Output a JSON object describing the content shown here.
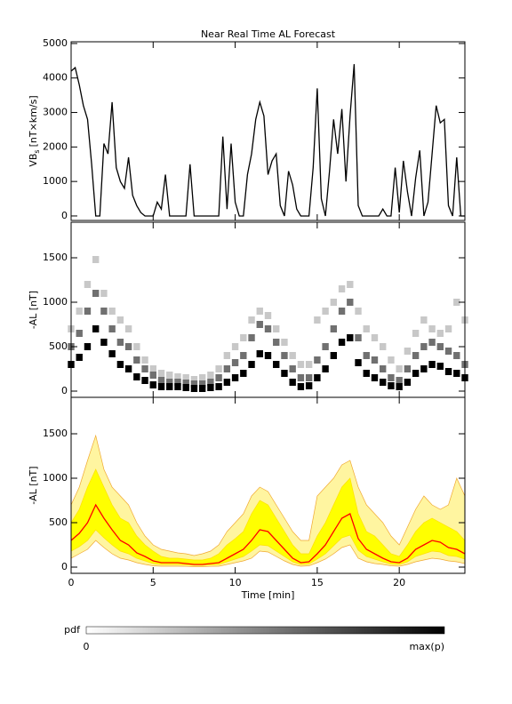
{
  "chart_data": [
    {
      "type": "line",
      "title": "Near Real Time AL Forecast",
      "ylabel": {
        "main": "VB",
        "sub": "s",
        "unit": "[nT×km/s]"
      },
      "x": [
        0,
        0.25,
        0.5,
        0.75,
        1,
        1.25,
        1.5,
        1.75,
        2,
        2.25,
        2.5,
        2.75,
        3,
        3.25,
        3.5,
        3.75,
        4,
        4.25,
        4.5,
        4.75,
        5,
        5.25,
        5.5,
        5.75,
        6,
        6.25,
        6.5,
        6.75,
        7,
        7.25,
        7.5,
        7.75,
        8,
        8.25,
        8.5,
        8.75,
        9,
        9.25,
        9.5,
        9.75,
        10,
        10.25,
        10.5,
        10.75,
        11,
        11.25,
        11.5,
        11.75,
        12,
        12.25,
        12.5,
        12.75,
        13,
        13.25,
        13.5,
        13.75,
        14,
        14.25,
        14.5,
        14.75,
        15,
        15.25,
        15.5,
        15.75,
        16,
        16.25,
        16.5,
        16.75,
        17,
        17.25,
        17.5,
        17.75,
        18,
        18.25,
        18.5,
        18.75,
        19,
        19.25,
        19.5,
        19.75,
        20,
        20.25,
        20.5,
        20.75,
        21,
        21.25,
        21.5,
        21.75,
        22,
        22.25,
        22.5,
        22.75,
        23,
        23.25,
        23.5,
        23.75,
        24
      ],
      "series": [
        {
          "color": "#000000",
          "values": [
            4200,
            4300,
            3800,
            3200,
            2800,
            1500,
            0,
            0,
            2100,
            1800,
            3300,
            1400,
            1000,
            800,
            1700,
            600,
            300,
            100,
            0,
            0,
            0,
            400,
            200,
            1200,
            0,
            0,
            0,
            0,
            0,
            1500,
            0,
            0,
            0,
            0,
            0,
            0,
            0,
            2300,
            200,
            2100,
            400,
            0,
            0,
            1200,
            1800,
            2800,
            3300,
            2900,
            1200,
            1600,
            1800,
            300,
            0,
            1300,
            900,
            200,
            0,
            0,
            0,
            1400,
            3700,
            500,
            0,
            1300,
            2800,
            1800,
            3100,
            1000,
            2900,
            4400,
            300,
            0,
            0,
            0,
            0,
            0,
            200,
            0,
            0,
            1400,
            100,
            1600,
            700,
            0,
            1100,
            1900,
            0,
            400,
            1800,
            3200,
            2700,
            2800,
            300,
            0,
            1700,
            0,
            0
          ]
        }
      ],
      "xlim": [
        0,
        24
      ],
      "xticks": [
        0,
        5,
        10,
        15,
        20
      ],
      "ylim": [
        -130,
        5050
      ],
      "yticks": [
        0,
        1000,
        2000,
        3000,
        4000,
        5000
      ]
    },
    {
      "type": "heatmap",
      "ylabel": "-AL [nT]",
      "x": [
        0,
        0.5,
        1,
        1.5,
        2,
        2.5,
        3,
        3.5,
        4,
        4.5,
        5,
        5.5,
        6,
        6.5,
        7,
        7.5,
        8,
        8.5,
        9,
        9.5,
        10,
        10.5,
        11,
        11.5,
        12,
        12.5,
        13,
        13.5,
        14,
        14.5,
        15,
        15.5,
        16,
        16.5,
        17,
        17.5,
        18,
        18.5,
        19,
        19.5,
        20,
        20.5,
        21,
        21.5,
        22,
        22.5,
        23,
        23.5,
        24
      ],
      "series": [
        {
          "color": "#000000",
          "values": [
            300,
            380,
            500,
            700,
            550,
            420,
            300,
            250,
            160,
            120,
            70,
            50,
            50,
            50,
            40,
            30,
            30,
            40,
            50,
            100,
            150,
            200,
            300,
            420,
            400,
            300,
            200,
            100,
            50,
            60,
            150,
            250,
            400,
            550,
            600,
            320,
            200,
            150,
            100,
            60,
            50,
            100,
            200,
            250,
            300,
            280,
            220,
            200,
            150
          ]
        },
        {
          "color": "#707070",
          "values": [
            500,
            650,
            900,
            1100,
            900,
            700,
            550,
            500,
            350,
            250,
            180,
            120,
            100,
            100,
            90,
            80,
            80,
            100,
            150,
            250,
            320,
            400,
            600,
            750,
            700,
            550,
            400,
            250,
            150,
            150,
            350,
            500,
            700,
            900,
            1000,
            600,
            400,
            350,
            250,
            150,
            120,
            250,
            400,
            500,
            550,
            500,
            450,
            400,
            300
          ]
        },
        {
          "color": "#c8c8c8",
          "values": [
            700,
            900,
            1200,
            1480,
            1100,
            900,
            800,
            700,
            500,
            350,
            250,
            200,
            180,
            160,
            150,
            130,
            150,
            180,
            250,
            400,
            500,
            600,
            800,
            900,
            850,
            700,
            550,
            400,
            300,
            300,
            800,
            900,
            1000,
            1150,
            1200,
            900,
            700,
            600,
            500,
            350,
            250,
            450,
            650,
            800,
            700,
            650,
            700,
            1000,
            800
          ]
        }
      ],
      "xlim": [
        0,
        24
      ],
      "xticks": [
        0,
        5,
        10,
        15,
        20
      ],
      "ylim": [
        -70,
        1900
      ],
      "yticks": [
        0,
        500,
        1000,
        1500
      ],
      "colorbar": {
        "label": "pdf",
        "min_label": "0",
        "max_label": "max(p)"
      }
    },
    {
      "type": "band",
      "ylabel": "-AL [nT]",
      "xlabel": "Time [min]",
      "x": [
        0,
        0.5,
        1,
        1.5,
        2,
        2.5,
        3,
        3.5,
        4,
        4.5,
        5,
        5.5,
        6,
        6.5,
        7,
        7.5,
        8,
        8.5,
        9,
        9.5,
        10,
        10.5,
        11,
        11.5,
        12,
        12.5,
        13,
        13.5,
        14,
        14.5,
        15,
        15.5,
        16,
        16.5,
        17,
        17.5,
        18,
        18.5,
        19,
        19.5,
        20,
        20.5,
        21,
        21.5,
        22,
        22.5,
        23,
        23.5,
        24
      ],
      "bands": [
        {
          "color": "#fff5a0",
          "edge": "#f0a830",
          "upper": [
            700,
            900,
            1200,
            1480,
            1100,
            900,
            800,
            700,
            500,
            350,
            250,
            200,
            180,
            160,
            150,
            130,
            150,
            180,
            250,
            400,
            500,
            600,
            800,
            900,
            850,
            700,
            550,
            400,
            300,
            300,
            800,
            900,
            1000,
            1150,
            1200,
            900,
            700,
            600,
            500,
            350,
            250,
            450,
            650,
            800,
            700,
            650,
            700,
            1000,
            800
          ],
          "lower": [
            100,
            150,
            200,
            300,
            220,
            150,
            100,
            80,
            50,
            30,
            15,
            10,
            10,
            10,
            8,
            5,
            5,
            8,
            10,
            30,
            50,
            70,
            100,
            180,
            170,
            120,
            70,
            30,
            10,
            15,
            50,
            90,
            150,
            220,
            250,
            100,
            60,
            40,
            30,
            15,
            10,
            30,
            60,
            80,
            100,
            90,
            70,
            60,
            40
          ]
        },
        {
          "color": "#ffff00",
          "edge": "#ffe000",
          "upper": [
            500,
            650,
            900,
            1100,
            900,
            700,
            550,
            500,
            350,
            250,
            180,
            120,
            100,
            100,
            90,
            80,
            80,
            100,
            150,
            250,
            320,
            400,
            600,
            750,
            700,
            550,
            400,
            250,
            150,
            150,
            350,
            500,
            700,
            900,
            1000,
            600,
            400,
            350,
            250,
            150,
            120,
            250,
            400,
            500,
            550,
            500,
            450,
            400,
            300
          ],
          "lower": [
            180,
            230,
            300,
            420,
            330,
            250,
            180,
            150,
            100,
            70,
            40,
            30,
            30,
            30,
            25,
            20,
            20,
            25,
            30,
            60,
            90,
            120,
            180,
            250,
            240,
            180,
            120,
            60,
            30,
            35,
            90,
            150,
            240,
            330,
            360,
            190,
            120,
            90,
            60,
            35,
            30,
            60,
            120,
            150,
            180,
            170,
            130,
            120,
            90
          ]
        }
      ],
      "series": [
        {
          "color": "#ff0000",
          "values": [
            300,
            380,
            500,
            700,
            550,
            420,
            300,
            250,
            160,
            120,
            70,
            50,
            50,
            50,
            40,
            30,
            30,
            40,
            50,
            100,
            150,
            200,
            300,
            420,
            400,
            300,
            200,
            100,
            50,
            60,
            150,
            250,
            400,
            550,
            600,
            320,
            200,
            150,
            100,
            60,
            50,
            100,
            200,
            250,
            300,
            280,
            220,
            200,
            150
          ]
        }
      ],
      "xlim": [
        0,
        24
      ],
      "xticks": [
        0,
        5,
        10,
        15,
        20
      ],
      "ylim": [
        -70,
        1910
      ],
      "yticks": [
        0,
        500,
        1000,
        1500
      ]
    }
  ]
}
